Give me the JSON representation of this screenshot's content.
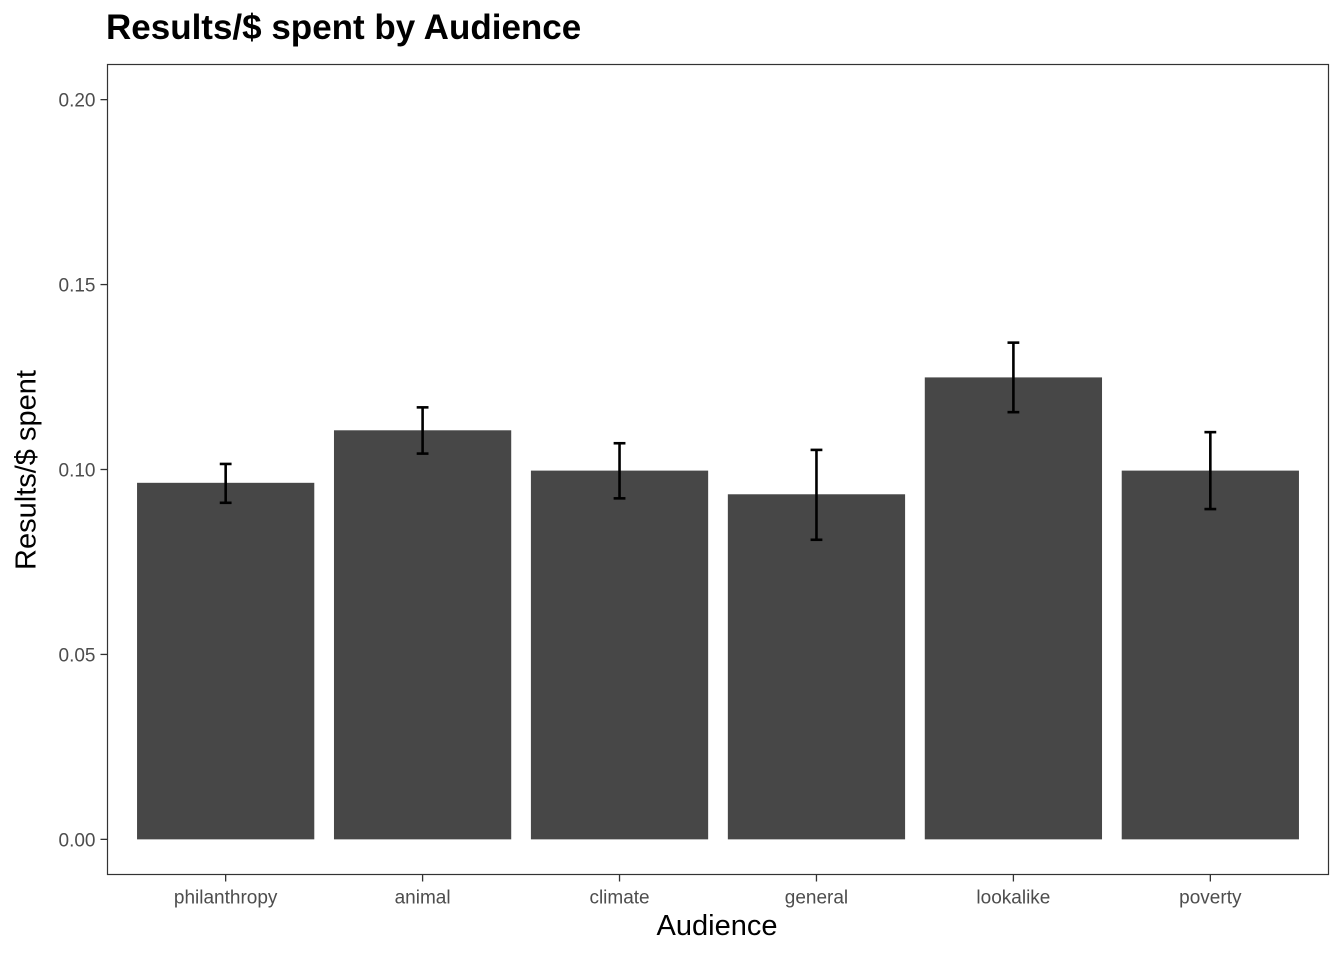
{
  "chart_data": {
    "type": "bar",
    "title": "Results/$ spent by Audience",
    "xlabel": "Audience",
    "ylabel": "Results/$ spent",
    "categories": [
      "philanthropy",
      "animal",
      "climate",
      "general",
      "lookalike",
      "poverty"
    ],
    "values": [
      0.0964,
      0.1106,
      0.0997,
      0.0933,
      0.1249,
      0.0997
    ],
    "error_low": [
      0.091,
      0.1043,
      0.0922,
      0.081,
      0.1155,
      0.0893
    ],
    "error_high": [
      0.1015,
      0.1168,
      0.1071,
      0.1053,
      0.1343,
      0.1101
    ],
    "ylim": [
      -0.0095,
      0.2095
    ],
    "yticks": [
      0.0,
      0.05,
      0.1,
      0.15,
      0.2
    ],
    "ytick_labels": [
      "0.00",
      "0.05",
      "0.10",
      "0.15",
      "0.20"
    ],
    "grid": false,
    "bar_color": "#474747",
    "errorbar_color": "#000000",
    "panel_border_color": "#333333"
  }
}
